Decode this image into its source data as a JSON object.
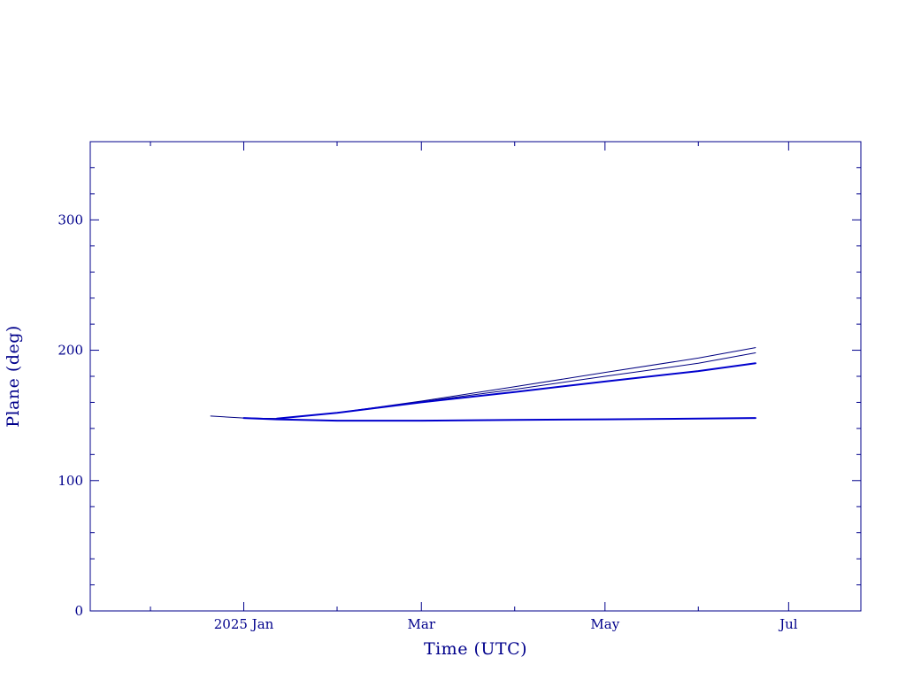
{
  "chart_data": {
    "type": "line",
    "title": "",
    "xlabel": "Time (UTC)",
    "ylabel": "Plane (deg)",
    "x_axis": {
      "range": [
        "2024-11-11",
        "2025-07-25"
      ],
      "ticks": [
        {
          "date": "2025-01-01",
          "label": "2025 Jan"
        },
        {
          "date": "2025-03-01",
          "label": "Mar"
        },
        {
          "date": "2025-05-01",
          "label": "May"
        },
        {
          "date": "2025-07-01",
          "label": "Jul"
        }
      ],
      "minor_ticks": [
        "2024-12-01",
        "2025-02-01",
        "2025-04-01",
        "2025-06-01"
      ]
    },
    "y_axis": {
      "range": [
        0,
        360
      ],
      "ticks": [
        0,
        100,
        200,
        300
      ],
      "minor_step": 20
    },
    "grid": false,
    "colors": {
      "axis": "#00008b",
      "series_dark": "#000080",
      "series_blue": "#0000cd"
    },
    "series": [
      {
        "color": "#000080",
        "stroke": 1,
        "points": [
          [
            "2024-12-21",
            149.5
          ],
          [
            "2025-01-01",
            148
          ],
          [
            "2025-01-12",
            147.5
          ],
          [
            "2025-02-01",
            152
          ],
          [
            "2025-03-01",
            161
          ],
          [
            "2025-04-01",
            172
          ],
          [
            "2025-05-01",
            183
          ],
          [
            "2025-06-01",
            194
          ],
          [
            "2025-06-20",
            202
          ]
        ]
      },
      {
        "color": "#000080",
        "stroke": 1,
        "points": [
          [
            "2025-01-01",
            148
          ],
          [
            "2025-01-12",
            147.5
          ],
          [
            "2025-02-01",
            152
          ],
          [
            "2025-03-01",
            160.5
          ],
          [
            "2025-04-01",
            170
          ],
          [
            "2025-05-01",
            180
          ],
          [
            "2025-06-01",
            190
          ],
          [
            "2025-06-20",
            198
          ]
        ]
      },
      {
        "color": "#0000cd",
        "stroke": 2,
        "points": [
          [
            "2025-01-12",
            147.5
          ],
          [
            "2025-02-01",
            152
          ],
          [
            "2025-03-01",
            160
          ],
          [
            "2025-04-01",
            168
          ],
          [
            "2025-05-01",
            176
          ],
          [
            "2025-06-01",
            184
          ],
          [
            "2025-06-20",
            190
          ]
        ]
      },
      {
        "color": "#0000cd",
        "stroke": 2,
        "points": [
          [
            "2025-01-01",
            148
          ],
          [
            "2025-01-12",
            147
          ],
          [
            "2025-02-01",
            146
          ],
          [
            "2025-03-01",
            146
          ],
          [
            "2025-04-01",
            146.5
          ],
          [
            "2025-05-01",
            147
          ],
          [
            "2025-06-01",
            147.5
          ],
          [
            "2025-06-20",
            148
          ]
        ]
      }
    ]
  }
}
